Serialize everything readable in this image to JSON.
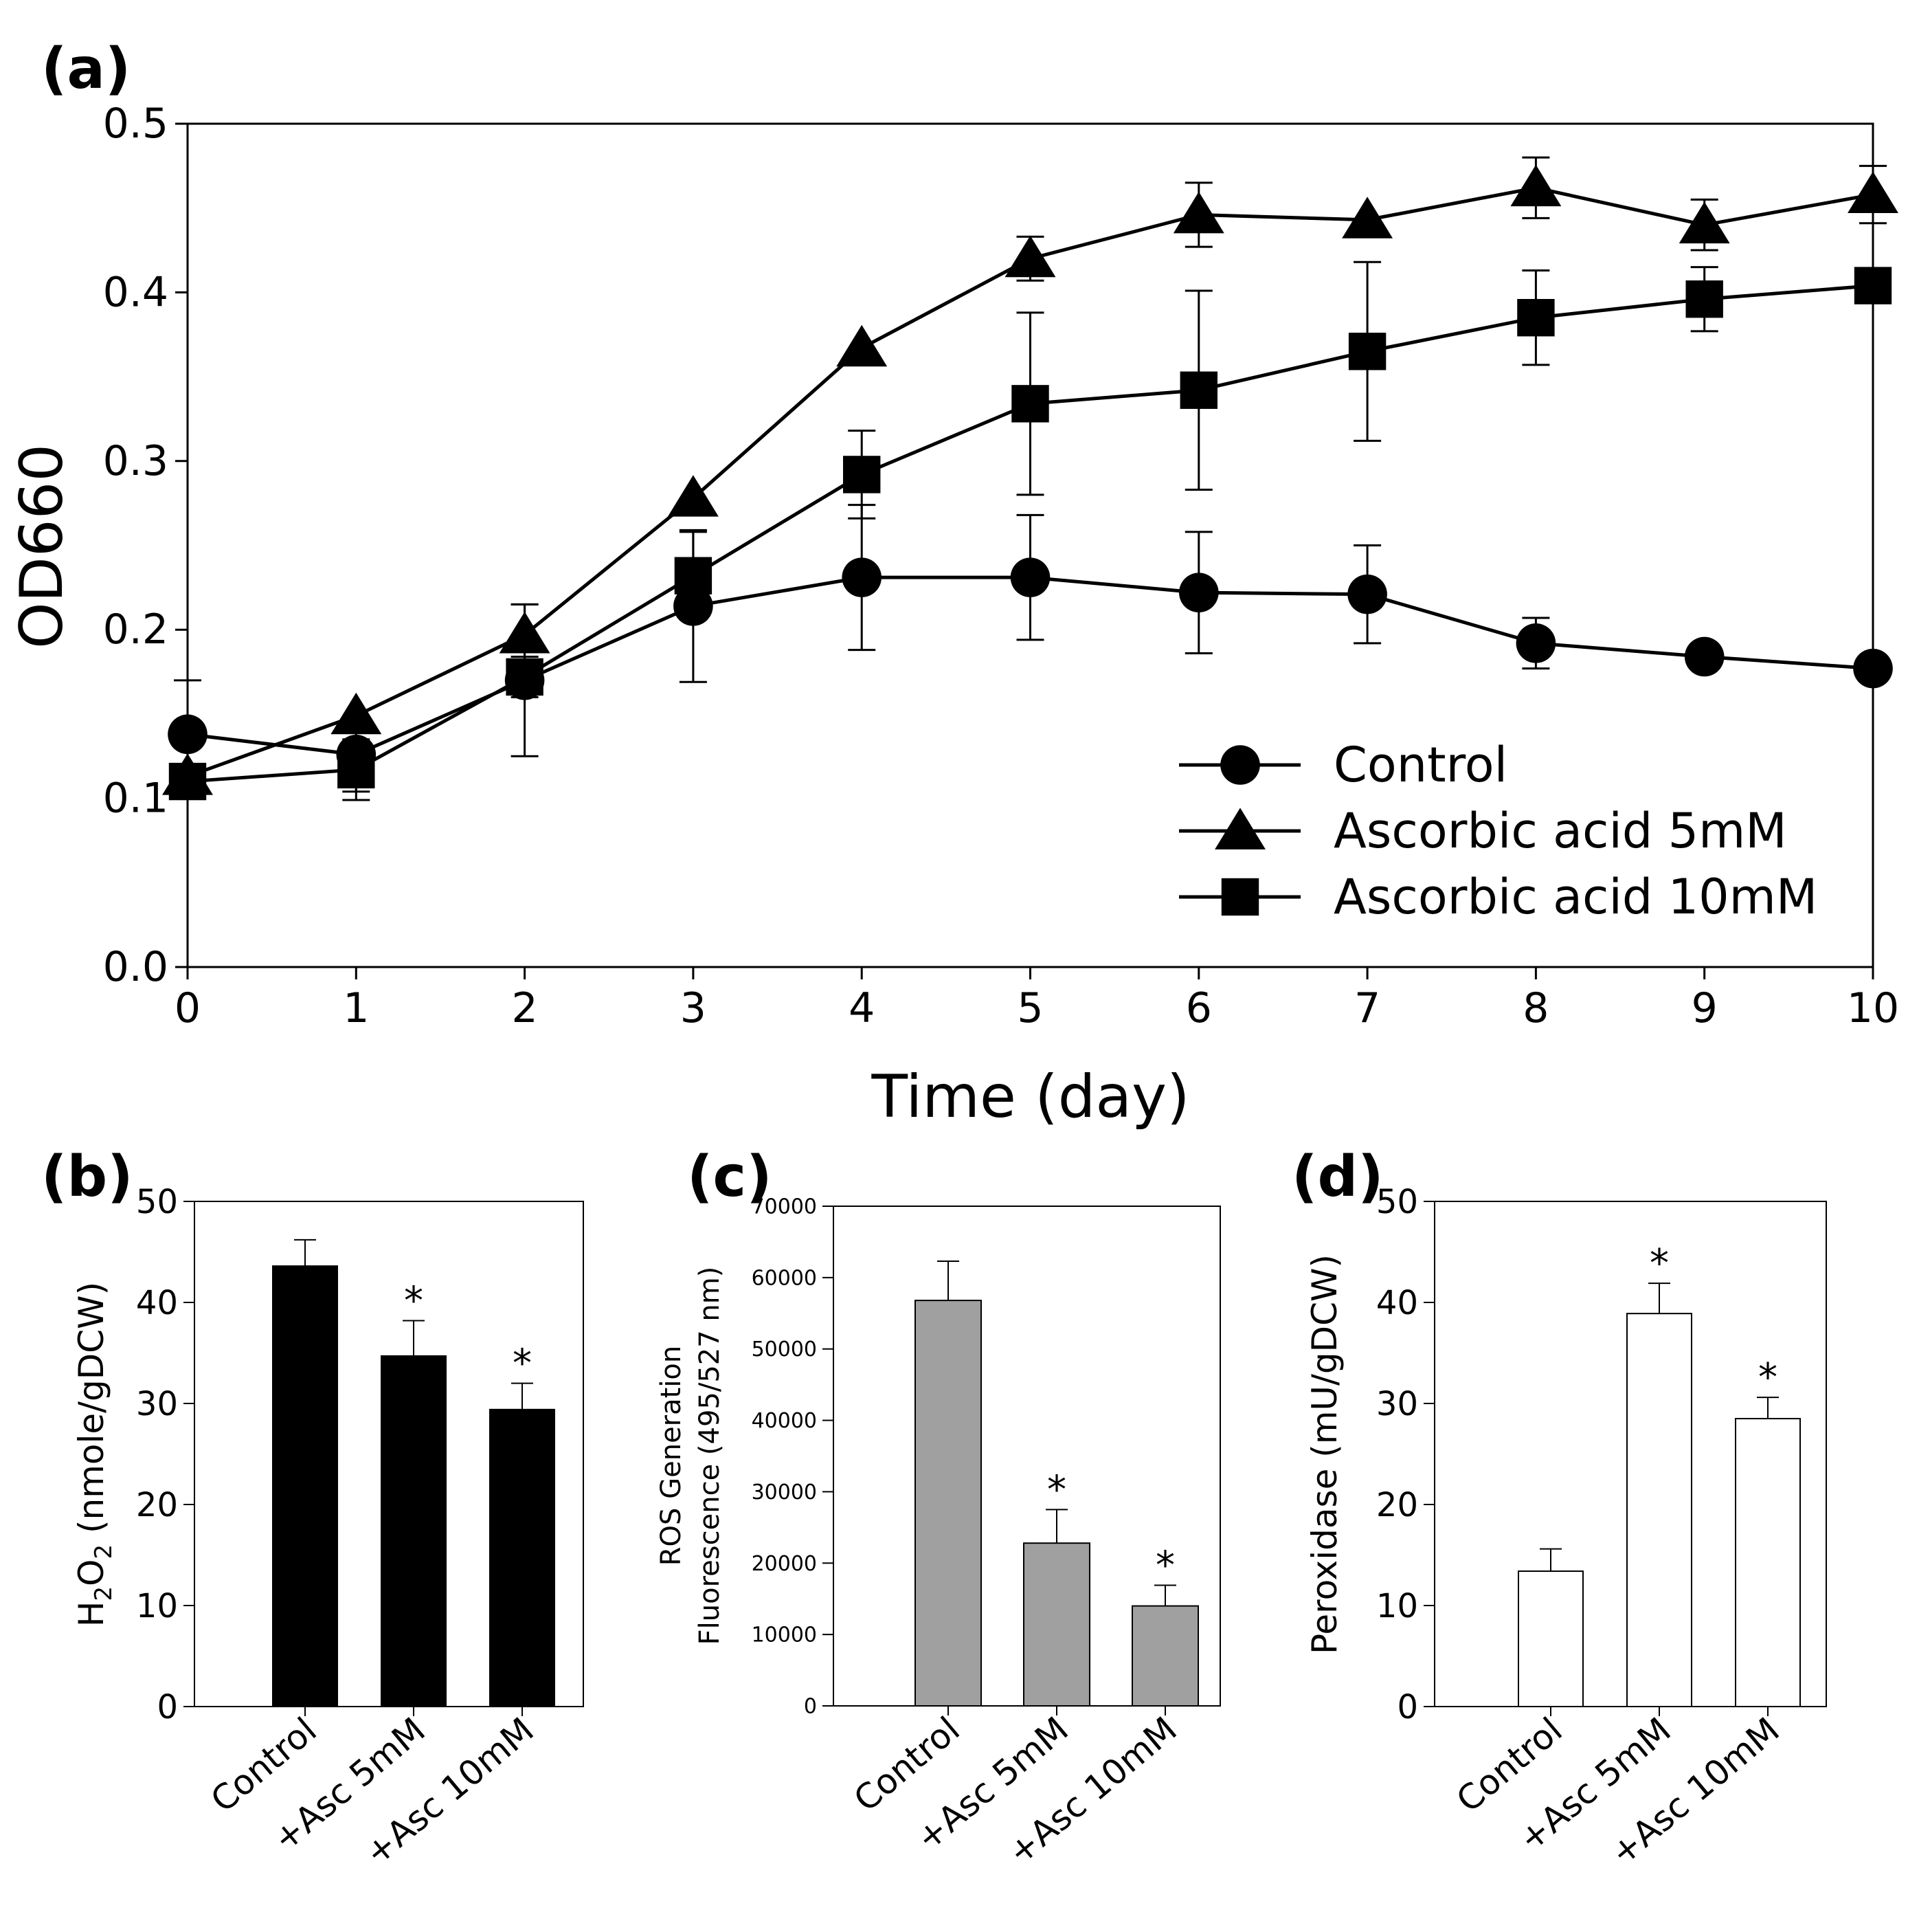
{
  "chart_data": [
    {
      "panel": "(a)",
      "type": "line",
      "title": "",
      "xlabel": "Time (day)",
      "ylabel": "OD660",
      "xlim": [
        0,
        10
      ],
      "ylim": [
        0,
        0.5
      ],
      "xticks": [
        0,
        1,
        2,
        3,
        4,
        5,
        6,
        7,
        8,
        9,
        10
      ],
      "yticks": [
        0.0,
        0.1,
        0.2,
        0.3,
        0.4,
        0.5
      ],
      "ytick_labels": [
        "0.0",
        "0.1",
        "0.2",
        "0.3",
        "0.4",
        "0.5"
      ],
      "legend_position": "bottom-right",
      "series": [
        {
          "name": "Control",
          "marker": "circle",
          "x": [
            0,
            1,
            2,
            3,
            4,
            5,
            6,
            7,
            8,
            9,
            10
          ],
          "values": [
            0.138,
            0.126,
            0.17,
            0.214,
            0.231,
            0.231,
            0.222,
            0.221,
            0.192,
            0.184,
            0.177
          ],
          "errors": [
            0.032,
            0.022,
            0.045,
            0.045,
            0.043,
            0.037,
            0.036,
            0.029,
            0.015,
            0.0,
            0.0
          ]
        },
        {
          "name": "Ascorbic acid 5mM",
          "marker": "triangle",
          "x": [
            0,
            1,
            2,
            3,
            4,
            5,
            6,
            7,
            8,
            9,
            10
          ],
          "values": [
            0.113,
            0.149,
            0.197,
            0.278,
            0.367,
            0.42,
            0.446,
            0.443,
            0.462,
            0.44,
            0.458
          ],
          "errors": [
            0.0,
            0.0,
            0.018,
            0.0,
            0.0,
            0.013,
            0.019,
            0.0,
            0.018,
            0.015,
            0.017
          ]
        },
        {
          "name": "Ascorbic acid 10mM",
          "marker": "square",
          "x": [
            0,
            1,
            2,
            3,
            4,
            5,
            6,
            7,
            8,
            9,
            10
          ],
          "values": [
            0.11,
            0.117,
            0.172,
            0.232,
            0.292,
            0.334,
            0.342,
            0.365,
            0.385,
            0.396,
            0.404
          ],
          "errors": [
            0.0,
            0.018,
            0.012,
            0.026,
            0.026,
            0.054,
            0.059,
            0.053,
            0.028,
            0.019,
            0.0
          ]
        }
      ]
    },
    {
      "panel": "(b)",
      "type": "bar",
      "ylabel_main": "H",
      "ylabel_sub1": "2",
      "ylabel_mid": "O",
      "ylabel_sub2": "2",
      "ylabel_rest": " (nmole/gDCW)",
      "ylim": [
        0,
        50
      ],
      "yticks": [
        0,
        10,
        20,
        30,
        40,
        50
      ],
      "categories": [
        "Control",
        "+Asc 5mM",
        "+Asc 10mM"
      ],
      "values": [
        43.6,
        34.7,
        29.4
      ],
      "errors": [
        2.6,
        3.5,
        2.6
      ],
      "significance": [
        "",
        "*",
        "*"
      ],
      "bar_color": "#000000"
    },
    {
      "panel": "(c)",
      "type": "bar",
      "ylabel_line1": "ROS Generation",
      "ylabel_line2": "Fluorescence (495/527 nm)",
      "ylim": [
        0,
        70000
      ],
      "yticks": [
        0,
        10000,
        20000,
        30000,
        40000,
        50000,
        60000,
        70000
      ],
      "categories": [
        "Control",
        "+Asc 5mM",
        "+Asc 10mM"
      ],
      "values": [
        56800,
        22800,
        14000
      ],
      "errors": [
        5500,
        4700,
        2900
      ],
      "significance": [
        "",
        "*",
        "*"
      ],
      "bar_color": "#a0a0a0"
    },
    {
      "panel": "(d)",
      "type": "bar",
      "ylabel": "Peroxidase (mU/gDCW)",
      "ylim": [
        0,
        50
      ],
      "yticks": [
        0,
        10,
        20,
        30,
        40,
        50
      ],
      "categories": [
        "Control",
        "+Asc 5mM",
        "+Asc 10mM"
      ],
      "values": [
        13.4,
        38.9,
        28.5
      ],
      "errors": [
        2.2,
        3.0,
        2.1
      ],
      "significance": [
        "",
        "*",
        "*"
      ],
      "bar_color": "#ffffff"
    }
  ]
}
